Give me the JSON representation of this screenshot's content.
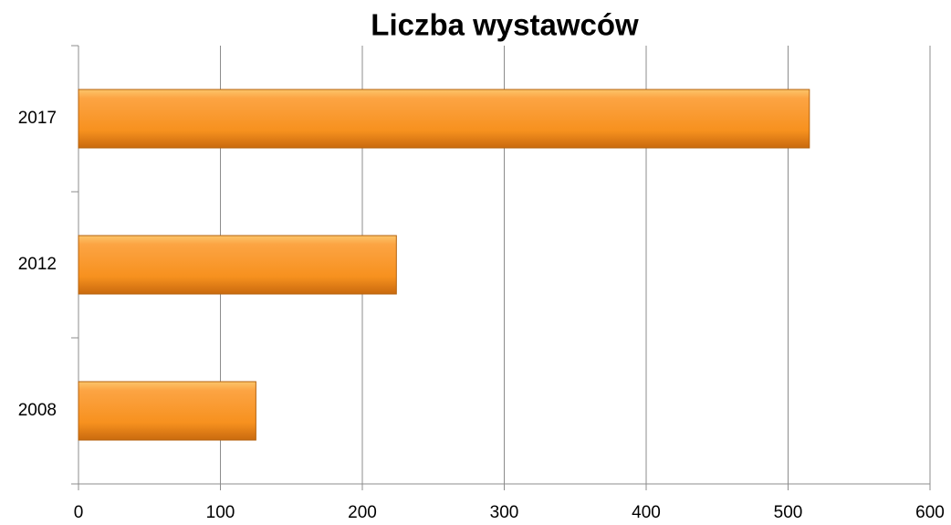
{
  "chart_data": {
    "type": "barh",
    "title": "Liczba wystawców",
    "categories": [
      "2008",
      "2012",
      "2017"
    ],
    "values": [
      125,
      224,
      515
    ],
    "color": "#f7941d",
    "xlim": [
      0,
      600
    ],
    "xticks": [
      0,
      100,
      200,
      300,
      400,
      500,
      600
    ],
    "grid": true
  }
}
